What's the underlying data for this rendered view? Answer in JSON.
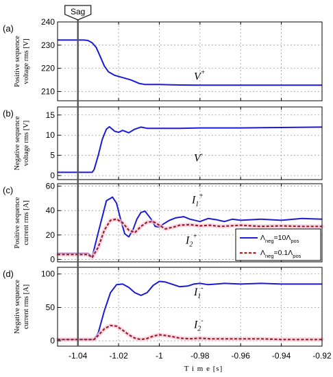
{
  "colors": {
    "blue": "#1a1ad6",
    "red": "#9e1e1e",
    "halo": "#f4c6dc",
    "sag_line": "#555555"
  },
  "sag": {
    "label": "Sag",
    "x": -1.04
  },
  "x_axis": {
    "label": "T i m e [s]",
    "range": [
      -1.05,
      -0.92
    ],
    "ticks": [
      -1.04,
      -1.02,
      -1,
      -0.98,
      -0.96,
      -0.94,
      -0.92
    ],
    "tick_labels": [
      "-1.04",
      "-1.02",
      "-1",
      "-0.98",
      "-0.96",
      "-0.94",
      "-0.92"
    ]
  },
  "legend": {
    "entries": [
      {
        "main": "Λ",
        "sub": "neg",
        "mid": "=10Λ",
        "sub2": "pos",
        "series": "blue",
        "style": "solid"
      },
      {
        "main": "Λ",
        "sub": "neg",
        "mid": "=0.1Λ",
        "sub2": "pos",
        "series": "red",
        "style": "dashed"
      }
    ]
  },
  "chart_data": [
    {
      "type": "line",
      "panel_label": "(a)",
      "ylabel": [
        "Positive sequence",
        "voltage rms [V]"
      ],
      "ylim": [
        206,
        240
      ],
      "yticks": [
        210,
        220,
        230,
        240
      ],
      "ytick_labels": [
        "210",
        "220",
        "230",
        "240"
      ],
      "grid": true,
      "annotations": [
        {
          "main": "V",
          "sup": "+",
          "x": -0.983,
          "y": 215
        }
      ],
      "series": [
        {
          "color_key": "blue",
          "style": "solid",
          "x": [
            -1.05,
            -1.037,
            -1.035,
            -1.033,
            -1.031,
            -1.029,
            -1.027,
            -1.025,
            -1.022,
            -1.018,
            -1.014,
            -1.01,
            -1.007,
            -1.003,
            -1.0,
            -0.99,
            -0.98,
            -0.96,
            -0.94,
            -0.92
          ],
          "y": [
            232.2,
            232.2,
            232,
            231,
            229,
            225,
            221,
            218.5,
            217,
            216,
            215,
            213.5,
            213,
            213,
            213,
            212.8,
            212.7,
            212.7,
            212.7,
            212.7
          ]
        }
      ]
    },
    {
      "type": "line",
      "panel_label": "(b)",
      "ylabel": [
        "Negative sequence",
        "voltage rms [V]"
      ],
      "ylim": [
        -1,
        17
      ],
      "yticks": [
        0,
        5,
        10,
        15
      ],
      "ytick_labels": [
        "0",
        "5",
        "10",
        "15"
      ],
      "grid": true,
      "annotations": [
        {
          "main": "V",
          "sup": "-",
          "x": -0.983,
          "y": 3.5
        }
      ],
      "series": [
        {
          "color_key": "blue",
          "style": "solid",
          "x": [
            -1.05,
            -1.033,
            -1.032,
            -1.03,
            -1.028,
            -1.026,
            -1.0245,
            -1.022,
            -1.02,
            -1.018,
            -1.015,
            -1.012,
            -1.009,
            -1.006,
            -1.0,
            -0.99,
            -0.98,
            -0.96,
            -0.94,
            -0.92
          ],
          "y": [
            0.8,
            0.8,
            1.5,
            5,
            9,
            11.5,
            12.1,
            11,
            10.7,
            11.2,
            10.6,
            11.5,
            12,
            11.7,
            11.7,
            11.7,
            11.8,
            11.8,
            11.9,
            12
          ]
        }
      ]
    },
    {
      "type": "line",
      "panel_label": "(c)",
      "ylabel": [
        "Positive sequence",
        "current rms [A]"
      ],
      "ylim": [
        -2,
        62
      ],
      "yticks": [
        0,
        20,
        40,
        60
      ],
      "ytick_labels": [
        "0",
        "20",
        "40",
        "60"
      ],
      "grid": true,
      "annotations": [
        {
          "main": "I",
          "sub": "1",
          "sup": "+",
          "x": -0.984,
          "y": 46
        },
        {
          "main": "I",
          "sub": "2",
          "sup": "+",
          "x": -0.987,
          "y": 13
        }
      ],
      "series": [
        {
          "color_key": "blue",
          "style": "solid",
          "x": [
            -1.05,
            -1.035,
            -1.033,
            -1.03,
            -1.026,
            -1.023,
            -1.021,
            -1.019,
            -1.017,
            -1.015,
            -1.013,
            -1.011,
            -1.009,
            -1.007,
            -1.004,
            -1.002,
            -1.0,
            -0.998,
            -0.995,
            -0.992,
            -0.988,
            -0.985,
            -0.98,
            -0.976,
            -0.972,
            -0.968,
            -0.964,
            -0.96,
            -0.95,
            -0.94,
            -0.93,
            -0.92
          ],
          "y": [
            5,
            5,
            2,
            22,
            48,
            51,
            46,
            33,
            21,
            18.5,
            24,
            33,
            38.5,
            39.5,
            33,
            27,
            26.5,
            29,
            32,
            34,
            35,
            33,
            31,
            33.5,
            32.5,
            31,
            33,
            32,
            33,
            32,
            33.5,
            33
          ]
        },
        {
          "color_key": "red",
          "style": "dashed",
          "x": [
            -1.05,
            -1.035,
            -1.033,
            -1.03,
            -1.027,
            -1.024,
            -1.021,
            -1.018,
            -1.015,
            -1.012,
            -1.009,
            -1.006,
            -1.003,
            -1.0,
            -0.997,
            -0.993,
            -0.99,
            -0.985,
            -0.98,
            -0.975,
            -0.97,
            -0.96,
            -0.95,
            -0.94,
            -0.93,
            -0.92
          ],
          "y": [
            4,
            4,
            1.5,
            10,
            24,
            32,
            33,
            30,
            24,
            22,
            27,
            30.5,
            31,
            28,
            25,
            26.5,
            28,
            28.5,
            27.5,
            28,
            27,
            28,
            27,
            27.5,
            27,
            27
          ]
        }
      ]
    },
    {
      "type": "line",
      "panel_label": "(d)",
      "ylabel": [
        "Negative sequence",
        "current rms [A]"
      ],
      "ylim": [
        -8,
        110
      ],
      "yticks": [
        0,
        50,
        100
      ],
      "ytick_labels": [
        "0",
        "50",
        "100"
      ],
      "grid": true,
      "annotations": [
        {
          "main": "I",
          "sub": "1",
          "sup": "-",
          "x": -0.983,
          "y": 68
        },
        {
          "main": "I",
          "sub": "2",
          "sup": "-",
          "x": -0.983,
          "y": 19
        }
      ],
      "series": [
        {
          "color_key": "blue",
          "style": "solid",
          "x": [
            -1.05,
            -1.032,
            -1.03,
            -1.027,
            -1.024,
            -1.021,
            -1.018,
            -1.015,
            -1.012,
            -1.009,
            -1.006,
            -1.003,
            -1.0,
            -0.997,
            -0.993,
            -0.99,
            -0.986,
            -0.983,
            -0.98,
            -0.976,
            -0.972,
            -0.968,
            -0.96,
            -0.95,
            -0.94,
            -0.93,
            -0.92
          ],
          "y": [
            2,
            2,
            12,
            45,
            72,
            84,
            85,
            80,
            72,
            68,
            72,
            83,
            89,
            88,
            84,
            81,
            82,
            85,
            86,
            84,
            85,
            86,
            85,
            86,
            85,
            85,
            85
          ]
        },
        {
          "color_key": "red",
          "style": "dashed",
          "x": [
            -1.05,
            -1.032,
            -1.03,
            -1.027,
            -1.024,
            -1.021,
            -1.018,
            -1.015,
            -1.012,
            -1.009,
            -1.006,
            -1.003,
            -1.0,
            -0.997,
            -0.993,
            -0.99,
            -0.985,
            -0.98,
            -0.975,
            -0.97,
            -0.96,
            -0.95,
            -0.94,
            -0.93,
            -0.92
          ],
          "y": [
            2,
            2,
            8,
            18,
            23,
            22,
            16,
            9,
            4,
            2,
            3.5,
            7,
            9,
            8,
            6,
            4,
            3,
            4,
            3,
            3,
            3,
            3,
            2,
            2,
            2
          ]
        }
      ]
    }
  ]
}
